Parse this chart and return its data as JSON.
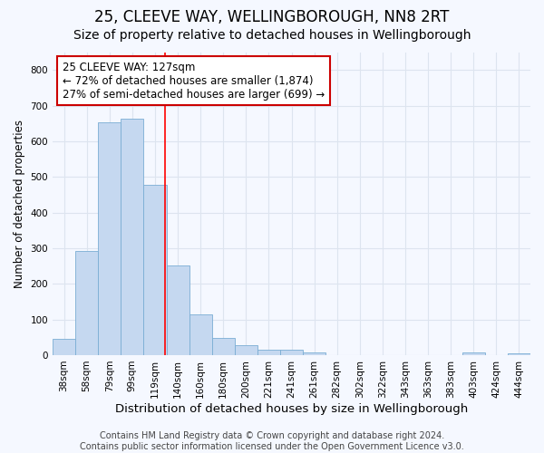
{
  "title1": "25, CLEEVE WAY, WELLINGBOROUGH, NN8 2RT",
  "title2": "Size of property relative to detached houses in Wellingborough",
  "xlabel": "Distribution of detached houses by size in Wellingborough",
  "ylabel": "Number of detached properties",
  "categories": [
    "38sqm",
    "58sqm",
    "79sqm",
    "99sqm",
    "119sqm",
    "140sqm",
    "160sqm",
    "180sqm",
    "200sqm",
    "221sqm",
    "241sqm",
    "261sqm",
    "282sqm",
    "302sqm",
    "322sqm",
    "343sqm",
    "363sqm",
    "383sqm",
    "403sqm",
    "424sqm",
    "444sqm"
  ],
  "values": [
    45,
    293,
    652,
    662,
    478,
    252,
    113,
    48,
    27,
    15,
    15,
    8,
    1,
    1,
    1,
    1,
    1,
    1,
    8,
    1,
    5
  ],
  "bar_color": "#c5d8f0",
  "bar_edge_color": "#7aadd4",
  "red_line_x": 4.42,
  "annotation_text": "25 CLEEVE WAY: 127sqm",
  "annotation_line2": "← 72% of detached houses are smaller (1,874)",
  "annotation_line3": "27% of semi-detached houses are larger (699) →",
  "annotation_box_color": "#ffffff",
  "annotation_box_edge": "#cc0000",
  "ylim": [
    0,
    850
  ],
  "yticks": [
    0,
    100,
    200,
    300,
    400,
    500,
    600,
    700,
    800
  ],
  "footer1": "Contains HM Land Registry data © Crown copyright and database right 2024.",
  "footer2": "Contains public sector information licensed under the Open Government Licence v3.0.",
  "bg_color": "#f5f8ff",
  "plot_bg_color": "#f5f8ff",
  "grid_color": "#dde4ef",
  "title1_fontsize": 12,
  "title2_fontsize": 10,
  "tick_fontsize": 7.5,
  "ylabel_fontsize": 8.5,
  "xlabel_fontsize": 9.5,
  "footer_fontsize": 7,
  "annotation_fontsize": 8.5
}
